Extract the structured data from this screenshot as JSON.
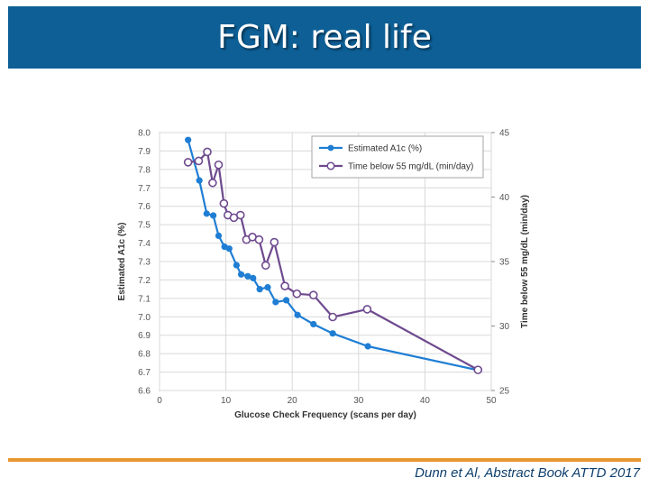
{
  "slide": {
    "title": "FGM: real life",
    "citation": "Dunn et Al, Abstract Book ATTD 2017"
  },
  "colors": {
    "title_bar": "#0d5f96",
    "accent_line": "#e8972f",
    "series_a1c": "#1f7ed4",
    "series_time": "#6e4a8e"
  },
  "chart_data": {
    "type": "line",
    "xlabel": "Glucose Check Frequency (scans per day)",
    "ylabel_left": "Estimated A1c (%)",
    "ylabel_right": "Time below 55 mg/dL (min/day)",
    "xlim": [
      0,
      50
    ],
    "ylim_left": [
      6.6,
      8.0
    ],
    "ylim_right": [
      25,
      45
    ],
    "x_ticks": [
      "0",
      "10",
      "20",
      "30",
      "40",
      "50"
    ],
    "y_left_ticks": [
      "6.6",
      "6.7",
      "6.8",
      "6.9",
      "7.0",
      "7.1",
      "7.2",
      "7.3",
      "7.4",
      "7.5",
      "7.6",
      "7.7",
      "7.8",
      "7.9",
      "8.0"
    ],
    "y_right_ticks": [
      "25",
      "30",
      "35",
      "40",
      "45"
    ],
    "grid": true,
    "legend_position": "top-right",
    "series": [
      {
        "name": "Estimated A1c (%)",
        "axis": "left",
        "marker": "filled",
        "x": [
          4.3,
          6,
          7.1,
          8.1,
          8.9,
          9.8,
          10.5,
          11.6,
          12.3,
          13.3,
          14.1,
          15.1,
          16.3,
          17.5,
          19.1,
          20.8,
          23.2,
          26.1,
          31.4,
          48
        ],
        "y": [
          7.96,
          7.74,
          7.56,
          7.55,
          7.44,
          7.38,
          7.37,
          7.28,
          7.23,
          7.22,
          7.21,
          7.15,
          7.16,
          7.08,
          7.09,
          7.01,
          6.96,
          6.91,
          6.84,
          6.71
        ]
      },
      {
        "name": "Time below 55 mg/dL (min/day)",
        "axis": "right",
        "marker": "open",
        "x": [
          4.3,
          5.9,
          7.2,
          8.0,
          8.9,
          9.7,
          10.3,
          11.2,
          12.2,
          13.1,
          14.0,
          15.0,
          16.0,
          17.3,
          18.9,
          20.7,
          23.2,
          26.1,
          31.3,
          48
        ],
        "y": [
          42.7,
          42.8,
          43.5,
          41.1,
          42.5,
          39.5,
          38.6,
          38.4,
          38.6,
          36.7,
          36.9,
          36.7,
          34.7,
          36.5,
          33.1,
          32.5,
          32.4,
          30.7,
          31.3,
          26.6
        ]
      }
    ]
  }
}
